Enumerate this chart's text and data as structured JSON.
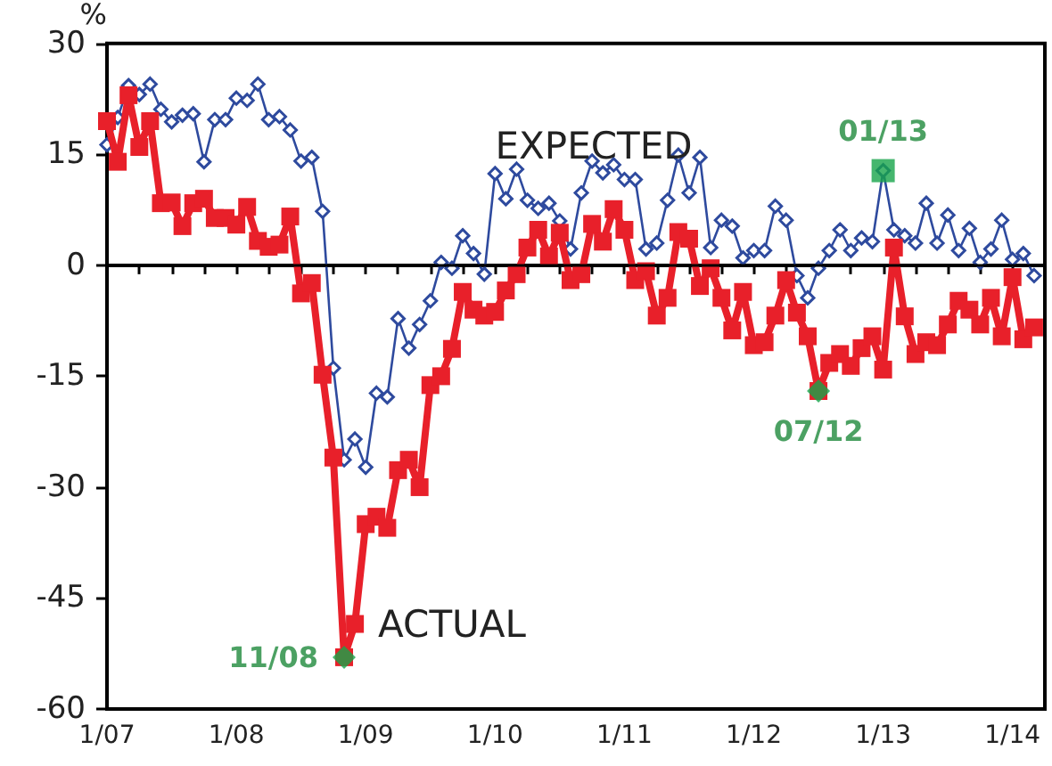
{
  "chart_data": {
    "type": "line",
    "ylabel": "%",
    "x": [
      "2007-01",
      "2007-02",
      "2007-03",
      "2007-04",
      "2007-05",
      "2007-06",
      "2007-07",
      "2007-08",
      "2007-09",
      "2007-10",
      "2007-11",
      "2007-12",
      "2008-01",
      "2008-02",
      "2008-03",
      "2008-04",
      "2008-05",
      "2008-06",
      "2008-07",
      "2008-08",
      "2008-09",
      "2008-10",
      "2008-11",
      "2008-12",
      "2009-01",
      "2009-02",
      "2009-03",
      "2009-04",
      "2009-05",
      "2009-06",
      "2009-07",
      "2009-08",
      "2009-09",
      "2009-10",
      "2009-11",
      "2009-12",
      "2010-01",
      "2010-02",
      "2010-03",
      "2010-04",
      "2010-05",
      "2010-06",
      "2010-07",
      "2010-08",
      "2010-09",
      "2010-10",
      "2010-11",
      "2010-12",
      "2011-01",
      "2011-02",
      "2011-03",
      "2011-04",
      "2011-05",
      "2011-06",
      "2011-07",
      "2011-08",
      "2011-09",
      "2011-10",
      "2011-11",
      "2011-12",
      "2012-01",
      "2012-02",
      "2012-03",
      "2012-04",
      "2012-05",
      "2012-06",
      "2012-07",
      "2012-08",
      "2012-09",
      "2012-10",
      "2012-11",
      "2012-12",
      "2013-01",
      "2013-02",
      "2013-03",
      "2013-04",
      "2013-05",
      "2013-06",
      "2013-07",
      "2013-08",
      "2013-09",
      "2013-10",
      "2013-11",
      "2013-12",
      "2014-01",
      "2014-02",
      "2014-03"
    ],
    "series": [
      {
        "name": "EXPECTED",
        "color": "#2e4a9e",
        "marker": "diamond",
        "values": [
          16.3,
          20,
          24.3,
          23.1,
          24.5,
          21.1,
          19.4,
          20.3,
          20.5,
          14,
          19.7,
          19.7,
          22.6,
          22.3,
          24.5,
          19.7,
          20.1,
          18.3,
          14.1,
          14.6,
          7.3,
          -13.9,
          -26.3,
          -23.5,
          -27.3,
          -17.3,
          -17.8,
          -7.2,
          -11.2,
          -8,
          -4.8,
          0.4,
          -0.4,
          4,
          1.6,
          -1.2,
          12.4,
          9,
          13,
          8.8,
          7.7,
          8.4,
          6,
          2.2,
          9.8,
          14.1,
          12.5,
          13.6,
          11.6,
          11.6,
          2.2,
          3,
          8.8,
          14.9,
          9.8,
          14.6,
          2.4,
          6.1,
          5.3,
          1,
          2,
          2,
          8,
          6.1,
          -1.4,
          -4.4,
          -0.4,
          2,
          4.8,
          2,
          3.7,
          3.2,
          12.8,
          4.8,
          4,
          3,
          8.4,
          3,
          6.8,
          2,
          5,
          0.4,
          2.2,
          6.1,
          0.8,
          1.6,
          -1.4
        ]
      },
      {
        "name": "ACTUAL",
        "color": "#e8202a",
        "marker": "square",
        "values": [
          19.5,
          14,
          23,
          16,
          19.5,
          8.4,
          8.5,
          5.3,
          8.4,
          9,
          6.4,
          6.4,
          5.5,
          7.9,
          3.3,
          2.5,
          2.8,
          6.6,
          -3.8,
          -2.4,
          -14.8,
          -26,
          -53,
          -48.5,
          -35,
          -34,
          -35.5,
          -27.7,
          -26.3,
          -30,
          -16.2,
          -15,
          -11.3,
          -3.6,
          -6,
          -6.8,
          -6.3,
          -3.4,
          -1.2,
          2.4,
          4.8,
          1.2,
          4.4,
          -2,
          -1.2,
          5.6,
          3.2,
          7.6,
          4.8,
          -2,
          -0.8,
          -6.8,
          -4.4,
          4.5,
          3.6,
          -2.8,
          -0.4,
          -4.4,
          -8.8,
          -3.6,
          -10.8,
          -10.4,
          -6.8,
          -2,
          -6.4,
          -9.6,
          -17,
          -13.2,
          -12,
          -13.6,
          -11.2,
          -9.6,
          -14.1,
          2.4,
          -6.9,
          -12,
          -10.4,
          -10.8,
          -8,
          -4.8,
          -6,
          -8,
          -4.4,
          -9.6,
          -1.6,
          -10,
          -8.4
        ]
      }
    ],
    "annotations": [
      {
        "text": "11/08",
        "x": "2008-11",
        "y": -53
      },
      {
        "text": "07/12",
        "x": "2012-07",
        "y": -17
      },
      {
        "text": "01/13",
        "x": "2013-01",
        "y": 12.8
      }
    ],
    "ref_lines": [
      {
        "axis": "y",
        "value": 0,
        "color": "#000000"
      }
    ],
    "xlim": [
      "2007-01",
      "2014-04"
    ],
    "xticks": [
      {
        "value": "2007-01",
        "label": "1/07"
      },
      {
        "value": "2007-04",
        "label": null
      },
      {
        "value": "2007-07",
        "label": null
      },
      {
        "value": "2007-10",
        "label": null
      },
      {
        "value": "2008-01",
        "label": "1/08"
      },
      {
        "value": "2008-04",
        "label": null
      },
      {
        "value": "2008-07",
        "label": null
      },
      {
        "value": "2008-10",
        "label": null
      },
      {
        "value": "2009-01",
        "label": "1/09"
      },
      {
        "value": "2009-04",
        "label": null
      },
      {
        "value": "2009-07",
        "label": null
      },
      {
        "value": "2009-10",
        "label": null
      },
      {
        "value": "2010-01",
        "label": "1/10"
      },
      {
        "value": "2010-04",
        "label": null
      },
      {
        "value": "2010-07",
        "label": null
      },
      {
        "value": "2010-10",
        "label": null
      },
      {
        "value": "2011-01",
        "label": "1/11"
      },
      {
        "value": "2011-04",
        "label": null
      },
      {
        "value": "2011-07",
        "label": null
      },
      {
        "value": "2011-10",
        "label": null
      },
      {
        "value": "2012-01",
        "label": "1/12"
      },
      {
        "value": "2012-04",
        "label": null
      },
      {
        "value": "2012-07",
        "label": null
      },
      {
        "value": "2012-10",
        "label": null
      },
      {
        "value": "2013-01",
        "label": "1/13"
      },
      {
        "value": "2013-04",
        "label": null
      },
      {
        "value": "2013-07",
        "label": null
      },
      {
        "value": "2013-10",
        "label": null
      },
      {
        "value": "2014-01",
        "label": "1/14"
      },
      {
        "value": "2014-04",
        "label": null
      }
    ],
    "ylim": [
      -60,
      30
    ],
    "yticks": [
      -60,
      -45,
      -30,
      -15,
      0,
      15,
      30
    ],
    "grid": false,
    "legend": false,
    "line_style": "solid"
  }
}
